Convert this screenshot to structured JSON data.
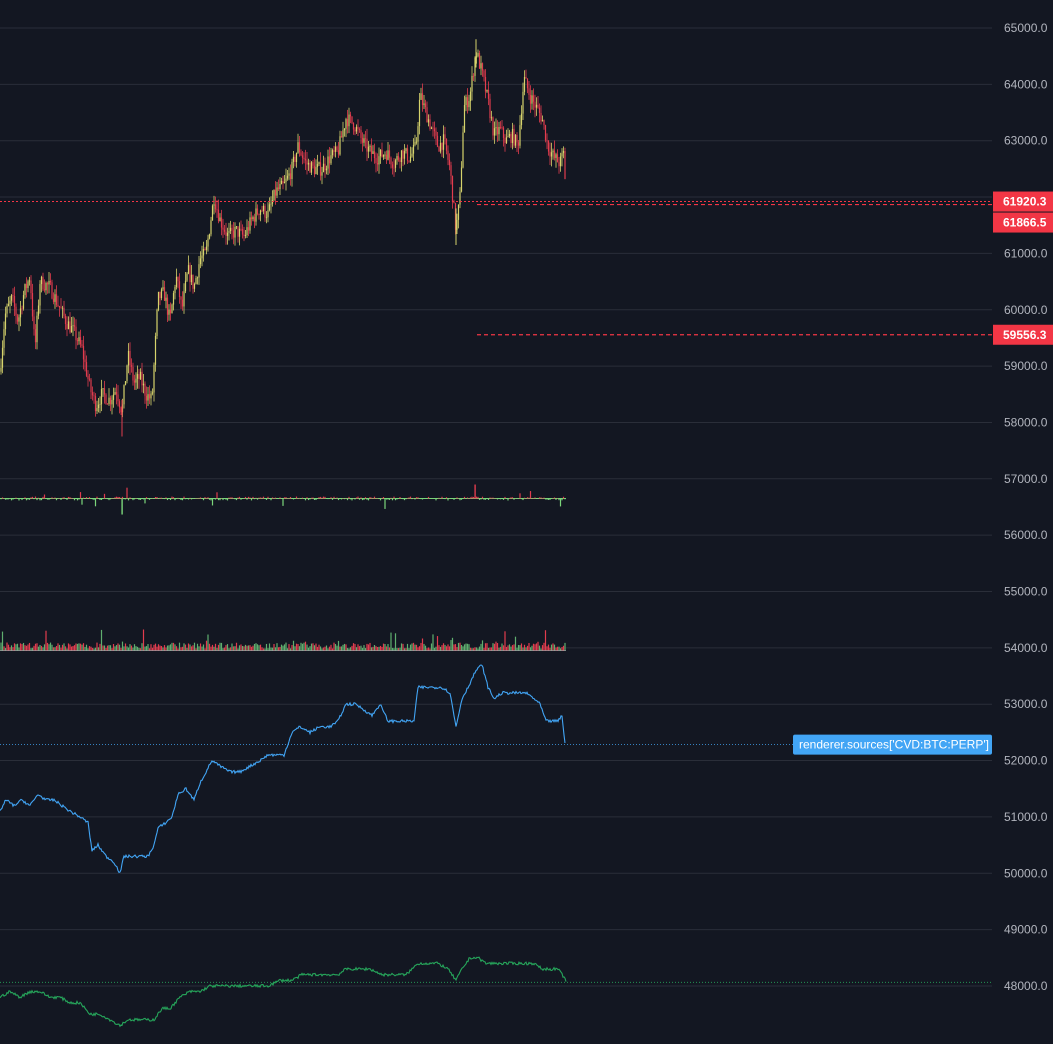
{
  "chart_data": {
    "type": "candlestick",
    "price_axis": {
      "ticks": [
        "65000.0",
        "64000.0",
        "63000.0",
        "62000.0",
        "61000.0",
        "60000.0",
        "59000.0",
        "58000.0",
        "57000.0",
        "56000.0",
        "55000.0",
        "54000.0",
        "53000.0",
        "52000.0",
        "51000.0",
        "50000.0",
        "49000.0",
        "48000.0"
      ],
      "range": [
        47700,
        65300
      ]
    },
    "price_tags": [
      {
        "label": "61920.3",
        "value": 61920.3,
        "color": "#f23645",
        "dashed_line": true
      },
      {
        "label": "61866.5",
        "value": 61866.5,
        "color": "#f23645",
        "dashed_line": false
      },
      {
        "label": "59556.3",
        "value": 59556.3,
        "color": "#f23645",
        "dashed_line": true
      }
    ],
    "candles_close_path": [
      [
        0,
        58900
      ],
      [
        5,
        59900
      ],
      [
        12,
        60200
      ],
      [
        18,
        59800
      ],
      [
        24,
        60300
      ],
      [
        30,
        60600
      ],
      [
        35,
        59300
      ],
      [
        40,
        60500
      ],
      [
        50,
        60400
      ],
      [
        58,
        60100
      ],
      [
        66,
        59800
      ],
      [
        74,
        59600
      ],
      [
        82,
        59300
      ],
      [
        90,
        58600
      ],
      [
        96,
        58300
      ],
      [
        102,
        58500
      ],
      [
        110,
        58400
      ],
      [
        116,
        58600
      ],
      [
        122,
        58200
      ],
      [
        128,
        59200
      ],
      [
        134,
        58700
      ],
      [
        140,
        58800
      ],
      [
        146,
        58500
      ],
      [
        152,
        58400
      ],
      [
        158,
        60200
      ],
      [
        164,
        60300
      ],
      [
        170,
        59800
      ],
      [
        176,
        60600
      ],
      [
        182,
        60000
      ],
      [
        188,
        60700
      ],
      [
        194,
        60400
      ],
      [
        200,
        60900
      ],
      [
        206,
        61000
      ],
      [
        210,
        61500
      ],
      [
        214,
        62000
      ],
      [
        220,
        61600
      ],
      [
        228,
        61300
      ],
      [
        236,
        61400
      ],
      [
        244,
        61300
      ],
      [
        252,
        61600
      ],
      [
        260,
        61800
      ],
      [
        268,
        61700
      ],
      [
        276,
        62100
      ],
      [
        284,
        62200
      ],
      [
        292,
        62500
      ],
      [
        298,
        62900
      ],
      [
        306,
        62600
      ],
      [
        314,
        62500
      ],
      [
        322,
        62500
      ],
      [
        330,
        62700
      ],
      [
        338,
        62800
      ],
      [
        346,
        63400
      ],
      [
        354,
        63300
      ],
      [
        362,
        63000
      ],
      [
        370,
        62800
      ],
      [
        378,
        62700
      ],
      [
        386,
        62800
      ],
      [
        394,
        62600
      ],
      [
        402,
        62800
      ],
      [
        410,
        62700
      ],
      [
        416,
        62900
      ],
      [
        420,
        63800
      ],
      [
        426,
        63500
      ],
      [
        432,
        63200
      ],
      [
        438,
        62900
      ],
      [
        444,
        63000
      ],
      [
        450,
        62500
      ],
      [
        456,
        61400
      ],
      [
        460,
        62000
      ],
      [
        464,
        63600
      ],
      [
        470,
        63800
      ],
      [
        476,
        64600
      ],
      [
        482,
        64200
      ],
      [
        488,
        63700
      ],
      [
        494,
        63100
      ],
      [
        500,
        63200
      ],
      [
        506,
        63000
      ],
      [
        512,
        63100
      ],
      [
        518,
        62900
      ],
      [
        524,
        64100
      ],
      [
        530,
        63800
      ],
      [
        536,
        63600
      ],
      [
        542,
        63400
      ],
      [
        548,
        62900
      ],
      [
        554,
        62700
      ],
      [
        560,
        62600
      ],
      [
        564,
        62800
      ],
      [
        566,
        61920
      ]
    ],
    "volume_delta": {
      "baseline": 56650,
      "range": [
        56300,
        57100
      ]
    },
    "volume": {
      "baseline": 54130,
      "range": [
        54100,
        54600
      ]
    },
    "cvd_series": {
      "name": "renderer.sources['CVD:BTC:PERP']",
      "color": "#42a5f5",
      "points": [
        [
          0,
          51100
        ],
        [
          6,
          51300
        ],
        [
          14,
          51200
        ],
        [
          22,
          51300
        ],
        [
          30,
          51200
        ],
        [
          38,
          51400
        ],
        [
          46,
          51300
        ],
        [
          54,
          51300
        ],
        [
          62,
          51200
        ],
        [
          70,
          51100
        ],
        [
          80,
          51000
        ],
        [
          88,
          50900
        ],
        [
          92,
          50400
        ],
        [
          98,
          50500
        ],
        [
          106,
          50300
        ],
        [
          114,
          50200
        ],
        [
          120,
          50000
        ],
        [
          124,
          50300
        ],
        [
          132,
          50300
        ],
        [
          140,
          50300
        ],
        [
          148,
          50300
        ],
        [
          154,
          50500
        ],
        [
          158,
          50800
        ],
        [
          166,
          50900
        ],
        [
          172,
          51000
        ],
        [
          178,
          51400
        ],
        [
          186,
          51500
        ],
        [
          194,
          51300
        ],
        [
          200,
          51600
        ],
        [
          206,
          51800
        ],
        [
          212,
          52000
        ],
        [
          220,
          51900
        ],
        [
          230,
          51800
        ],
        [
          240,
          51800
        ],
        [
          250,
          51900
        ],
        [
          260,
          52000
        ],
        [
          268,
          52100
        ],
        [
          276,
          52100
        ],
        [
          284,
          52100
        ],
        [
          292,
          52500
        ],
        [
          300,
          52600
        ],
        [
          310,
          52500
        ],
        [
          320,
          52600
        ],
        [
          330,
          52600
        ],
        [
          338,
          52700
        ],
        [
          346,
          53000
        ],
        [
          356,
          53000
        ],
        [
          364,
          52900
        ],
        [
          372,
          52800
        ],
        [
          380,
          53000
        ],
        [
          388,
          52700
        ],
        [
          396,
          52700
        ],
        [
          404,
          52700
        ],
        [
          414,
          52700
        ],
        [
          418,
          53300
        ],
        [
          426,
          53300
        ],
        [
          434,
          53300
        ],
        [
          442,
          53300
        ],
        [
          450,
          53200
        ],
        [
          456,
          52600
        ],
        [
          462,
          53100
        ],
        [
          468,
          53300
        ],
        [
          476,
          53600
        ],
        [
          482,
          53700
        ],
        [
          488,
          53300
        ],
        [
          494,
          53100
        ],
        [
          502,
          53200
        ],
        [
          510,
          53200
        ],
        [
          518,
          53200
        ],
        [
          526,
          53200
        ],
        [
          534,
          53100
        ],
        [
          540,
          53000
        ],
        [
          546,
          52700
        ],
        [
          552,
          52700
        ],
        [
          558,
          52700
        ],
        [
          562,
          52800
        ],
        [
          565,
          52300
        ]
      ]
    },
    "cvd_series_2": {
      "color": "#26a65b",
      "points": [
        [
          0,
          47800
        ],
        [
          10,
          47900
        ],
        [
          20,
          47800
        ],
        [
          30,
          47900
        ],
        [
          40,
          47900
        ],
        [
          50,
          47800
        ],
        [
          60,
          47800
        ],
        [
          70,
          47700
        ],
        [
          80,
          47700
        ],
        [
          90,
          47500
        ],
        [
          100,
          47500
        ],
        [
          110,
          47400
        ],
        [
          120,
          47300
        ],
        [
          128,
          47400
        ],
        [
          136,
          47400
        ],
        [
          146,
          47400
        ],
        [
          154,
          47400
        ],
        [
          162,
          47600
        ],
        [
          170,
          47600
        ],
        [
          180,
          47800
        ],
        [
          190,
          47900
        ],
        [
          200,
          47900
        ],
        [
          210,
          48000
        ],
        [
          220,
          48000
        ],
        [
          232,
          48000
        ],
        [
          244,
          48000
        ],
        [
          256,
          48000
        ],
        [
          268,
          48000
        ],
        [
          280,
          48100
        ],
        [
          292,
          48100
        ],
        [
          302,
          48200
        ],
        [
          314,
          48200
        ],
        [
          326,
          48200
        ],
        [
          338,
          48200
        ],
        [
          346,
          48300
        ],
        [
          358,
          48300
        ],
        [
          370,
          48300
        ],
        [
          382,
          48200
        ],
        [
          394,
          48200
        ],
        [
          406,
          48200
        ],
        [
          418,
          48400
        ],
        [
          428,
          48400
        ],
        [
          438,
          48400
        ],
        [
          448,
          48300
        ],
        [
          456,
          48100
        ],
        [
          462,
          48300
        ],
        [
          470,
          48500
        ],
        [
          478,
          48500
        ],
        [
          486,
          48400
        ],
        [
          494,
          48400
        ],
        [
          502,
          48400
        ],
        [
          510,
          48400
        ],
        [
          518,
          48400
        ],
        [
          526,
          48400
        ],
        [
          534,
          48400
        ],
        [
          542,
          48300
        ],
        [
          550,
          48300
        ],
        [
          558,
          48300
        ],
        [
          562,
          48200
        ],
        [
          566,
          48100
        ]
      ]
    },
    "grid": true
  }
}
